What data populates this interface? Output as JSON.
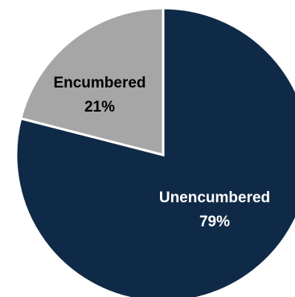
{
  "chart_data": {
    "type": "pie",
    "title": "",
    "start_angle_deg": 0,
    "direction": "clockwise",
    "show_percent_labels": true,
    "slices": [
      {
        "label": "Unencumbered",
        "value": 79,
        "percent_label": "79%",
        "color": "#0f2a46",
        "label_color": "#ffffff"
      },
      {
        "label": "Encumbered",
        "value": 21,
        "percent_label": "21%",
        "color": "#a6a6a6",
        "label_color": "#000000"
      }
    ]
  }
}
